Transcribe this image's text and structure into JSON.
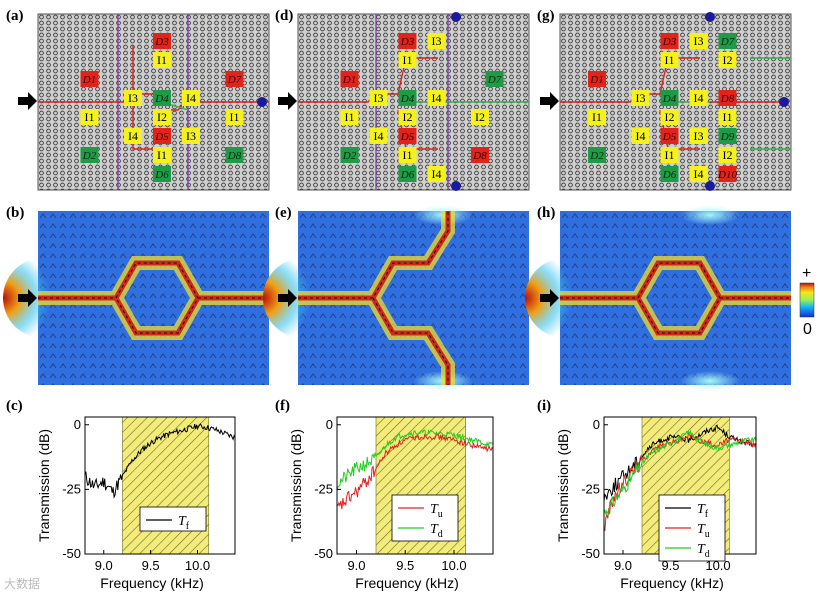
{
  "figure": {
    "panel_labels": [
      "(a)",
      "(b)",
      "(c)",
      "(d)",
      "(e)",
      "(f)",
      "(g)",
      "(h)",
      "(i)"
    ],
    "colorbar": {
      "max_label": "+",
      "min_label": "0"
    },
    "watermark": "大数据"
  },
  "colors": {
    "red": "#e2231a",
    "green": "#1f9a46",
    "yellow": "#f4f11c",
    "purple": "#7e3fa8",
    "blue": "#1a1a9a",
    "band": "#f3ec7a"
  },
  "layouts": [
    {
      "cells": [
        {
          "t": "D3",
          "c": "r",
          "col": 8,
          "row": 1
        },
        {
          "t": "I1",
          "c": "y",
          "col": 8,
          "row": 2
        },
        {
          "t": "D1",
          "c": "r",
          "col": 3,
          "row": 3
        },
        {
          "t": "D7",
          "c": "r",
          "col": 13,
          "row": 3
        },
        {
          "t": "I3",
          "c": "y",
          "col": 6,
          "row": 4
        },
        {
          "t": "D4",
          "c": "g",
          "col": 8,
          "row": 4
        },
        {
          "t": "I4",
          "c": "y",
          "col": 10,
          "row": 4
        },
        {
          "t": "I1",
          "c": "y",
          "col": 3,
          "row": 5
        },
        {
          "t": "I2",
          "c": "y",
          "col": 8,
          "row": 5
        },
        {
          "t": "I1",
          "c": "y",
          "col": 13,
          "row": 5
        },
        {
          "t": "I4",
          "c": "y",
          "col": 6,
          "row": 6
        },
        {
          "t": "D5",
          "c": "r",
          "col": 8,
          "row": 6
        },
        {
          "t": "I3",
          "c": "y",
          "col": 10,
          "row": 6
        },
        {
          "t": "D2",
          "c": "g",
          "col": 3,
          "row": 7
        },
        {
          "t": "I1",
          "c": "y",
          "col": 8,
          "row": 7
        },
        {
          "t": "D8",
          "c": "g",
          "col": 13,
          "row": 7
        },
        {
          "t": "D6",
          "c": "g",
          "col": 8,
          "row": 8
        }
      ]
    },
    {
      "cells": [
        {
          "t": "D3",
          "c": "r",
          "col": 7,
          "row": 1
        },
        {
          "t": "I3",
          "c": "y",
          "col": 9,
          "row": 1
        },
        {
          "t": "I1",
          "c": "y",
          "col": 7,
          "row": 2
        },
        {
          "t": "D1",
          "c": "r",
          "col": 3,
          "row": 3
        },
        {
          "t": "D7",
          "c": "g",
          "col": 13,
          "row": 3
        },
        {
          "t": "I3",
          "c": "y",
          "col": 5,
          "row": 4
        },
        {
          "t": "D4",
          "c": "g",
          "col": 7,
          "row": 4
        },
        {
          "t": "I4",
          "c": "y",
          "col": 9,
          "row": 4
        },
        {
          "t": "I1",
          "c": "y",
          "col": 3,
          "row": 5
        },
        {
          "t": "I2",
          "c": "y",
          "col": 7,
          "row": 5
        },
        {
          "t": "I2",
          "c": "y",
          "col": 12,
          "row": 5
        },
        {
          "t": "I4",
          "c": "y",
          "col": 5,
          "row": 6
        },
        {
          "t": "D5",
          "c": "r",
          "col": 7,
          "row": 6
        },
        {
          "t": "D2",
          "c": "g",
          "col": 3,
          "row": 7
        },
        {
          "t": "I1",
          "c": "y",
          "col": 7,
          "row": 7
        },
        {
          "t": "D8",
          "c": "r",
          "col": 12,
          "row": 7
        },
        {
          "t": "D6",
          "c": "g",
          "col": 7,
          "row": 8
        },
        {
          "t": "I4",
          "c": "y",
          "col": 9,
          "row": 8
        }
      ]
    },
    {
      "cells": [
        {
          "t": "D3",
          "c": "r",
          "col": 7,
          "row": 1
        },
        {
          "t": "I3",
          "c": "y",
          "col": 9,
          "row": 1
        },
        {
          "t": "D7",
          "c": "g",
          "col": 11,
          "row": 1
        },
        {
          "t": "I1",
          "c": "y",
          "col": 7,
          "row": 2
        },
        {
          "t": "I2",
          "c": "y",
          "col": 11,
          "row": 2
        },
        {
          "t": "D1",
          "c": "r",
          "col": 2,
          "row": 3
        },
        {
          "t": "I3",
          "c": "y",
          "col": 5,
          "row": 4
        },
        {
          "t": "D4",
          "c": "g",
          "col": 7,
          "row": 4
        },
        {
          "t": "I4",
          "c": "y",
          "col": 9,
          "row": 4
        },
        {
          "t": "D8",
          "c": "r",
          "col": 11,
          "row": 4
        },
        {
          "t": "I1",
          "c": "y",
          "col": 2,
          "row": 5
        },
        {
          "t": "I2",
          "c": "y",
          "col": 7,
          "row": 5
        },
        {
          "t": "I1",
          "c": "y",
          "col": 11,
          "row": 5
        },
        {
          "t": "I4",
          "c": "y",
          "col": 5,
          "row": 6
        },
        {
          "t": "D5",
          "c": "r",
          "col": 7,
          "row": 6
        },
        {
          "t": "I3",
          "c": "y",
          "col": 9,
          "row": 6
        },
        {
          "t": "D9",
          "c": "g",
          "col": 11,
          "row": 6
        },
        {
          "t": "D2",
          "c": "g",
          "col": 2,
          "row": 7
        },
        {
          "t": "I1",
          "c": "y",
          "col": 7,
          "row": 7
        },
        {
          "t": "I2",
          "c": "y",
          "col": 11,
          "row": 7
        },
        {
          "t": "D6",
          "c": "g",
          "col": 7,
          "row": 8
        },
        {
          "t": "I4",
          "c": "y",
          "col": 9,
          "row": 8
        },
        {
          "t": "D10",
          "c": "r",
          "col": 11,
          "row": 8
        }
      ]
    }
  ],
  "chart_data": [
    {
      "panel": "(c)",
      "type": "line",
      "xlabel": "Frequency (kHz)",
      "ylabel": "Transmission (dB)",
      "xlim": [
        8.8,
        10.4
      ],
      "ylim": [
        -50,
        3
      ],
      "xticks": [
        "9.0",
        "9.5",
        "10.0"
      ],
      "yticks": [
        "0",
        "-25",
        "-50"
      ],
      "shaded_band_khz": [
        9.2,
        10.12
      ],
      "series": [
        {
          "name": "T",
          "sub": "f",
          "color": "#000000",
          "x": [
            8.8,
            8.9,
            9.0,
            9.1,
            9.2,
            9.3,
            9.4,
            9.5,
            9.6,
            9.7,
            9.8,
            9.9,
            10.0,
            10.1,
            10.2,
            10.3,
            10.4
          ],
          "y": [
            -20,
            -24,
            -22,
            -26,
            -20,
            -14,
            -10,
            -7,
            -5,
            -3.5,
            -2.5,
            -1.5,
            -0.5,
            -1,
            -2,
            -3.5,
            -5
          ]
        }
      ]
    },
    {
      "panel": "(f)",
      "type": "line",
      "xlabel": "Frequency (kHz)",
      "ylabel": "Transmission (dB)",
      "xlim": [
        8.8,
        10.4
      ],
      "ylim": [
        -50,
        3
      ],
      "xticks": [
        "9.0",
        "9.5",
        "10.0"
      ],
      "yticks": [
        "0",
        "-25",
        "-50"
      ],
      "shaded_band_khz": [
        9.2,
        10.12
      ],
      "series": [
        {
          "name": "T",
          "sub": "u",
          "color": "#e52020",
          "x": [
            8.8,
            8.9,
            9.0,
            9.1,
            9.2,
            9.3,
            9.4,
            9.5,
            9.6,
            9.7,
            9.8,
            9.9,
            10.0,
            10.1,
            10.2,
            10.3,
            10.4
          ],
          "y": [
            -33,
            -29,
            -26,
            -22,
            -17,
            -11,
            -8,
            -6,
            -5,
            -4.5,
            -4.5,
            -5,
            -6,
            -7,
            -8,
            -9,
            -9.5
          ]
        },
        {
          "name": "T",
          "sub": "d",
          "color": "#22cc22",
          "x": [
            8.8,
            8.9,
            9.0,
            9.1,
            9.2,
            9.3,
            9.4,
            9.5,
            9.6,
            9.7,
            9.8,
            9.9,
            10.0,
            10.1,
            10.2,
            10.3,
            10.4
          ],
          "y": [
            -23,
            -20,
            -17,
            -15,
            -13,
            -8,
            -5,
            -3.5,
            -3,
            -3,
            -3.2,
            -3.5,
            -4,
            -5,
            -6,
            -7,
            -8
          ]
        }
      ]
    },
    {
      "panel": "(i)",
      "type": "line",
      "xlabel": "Frequency (kHz)",
      "ylabel": "Transmission (dB)",
      "xlim": [
        8.8,
        10.4
      ],
      "ylim": [
        -50,
        3
      ],
      "xticks": [
        "9.0",
        "9.5",
        "10.0"
      ],
      "yticks": [
        "0",
        "-25",
        "-50"
      ],
      "shaded_band_khz": [
        9.2,
        10.12
      ],
      "series": [
        {
          "name": "T",
          "sub": "f",
          "color": "#000000",
          "x": [
            8.8,
            8.9,
            9.0,
            9.1,
            9.2,
            9.3,
            9.4,
            9.5,
            9.6,
            9.7,
            9.8,
            9.9,
            10.0,
            10.1,
            10.2,
            10.3,
            10.4
          ],
          "y": [
            -28,
            -24,
            -20,
            -16,
            -12,
            -8,
            -6,
            -5,
            -5,
            -6,
            -4,
            -2,
            -1,
            -4,
            -6,
            -7,
            -8
          ]
        },
        {
          "name": "T",
          "sub": "u",
          "color": "#e52020",
          "x": [
            8.8,
            8.9,
            9.0,
            9.1,
            9.2,
            9.3,
            9.4,
            9.5,
            9.6,
            9.7,
            9.8,
            9.9,
            10.0,
            10.1,
            10.2,
            10.3,
            10.4
          ],
          "y": [
            -40,
            -28,
            -23,
            -18,
            -14,
            -10,
            -8,
            -7,
            -6,
            -4,
            -6,
            -7,
            -8,
            -6,
            -6,
            -7,
            -8
          ]
        },
        {
          "name": "T",
          "sub": "d",
          "color": "#22cc22",
          "x": [
            8.8,
            8.9,
            9.0,
            9.1,
            9.2,
            9.3,
            9.4,
            9.5,
            9.6,
            9.7,
            9.8,
            9.9,
            10.0,
            10.1,
            10.2,
            10.3,
            10.4
          ],
          "y": [
            -34,
            -30,
            -25,
            -20,
            -15,
            -11,
            -9,
            -7,
            -5,
            -3,
            -6,
            -8,
            -9,
            -8,
            -7,
            -6,
            -6
          ]
        }
      ]
    }
  ]
}
